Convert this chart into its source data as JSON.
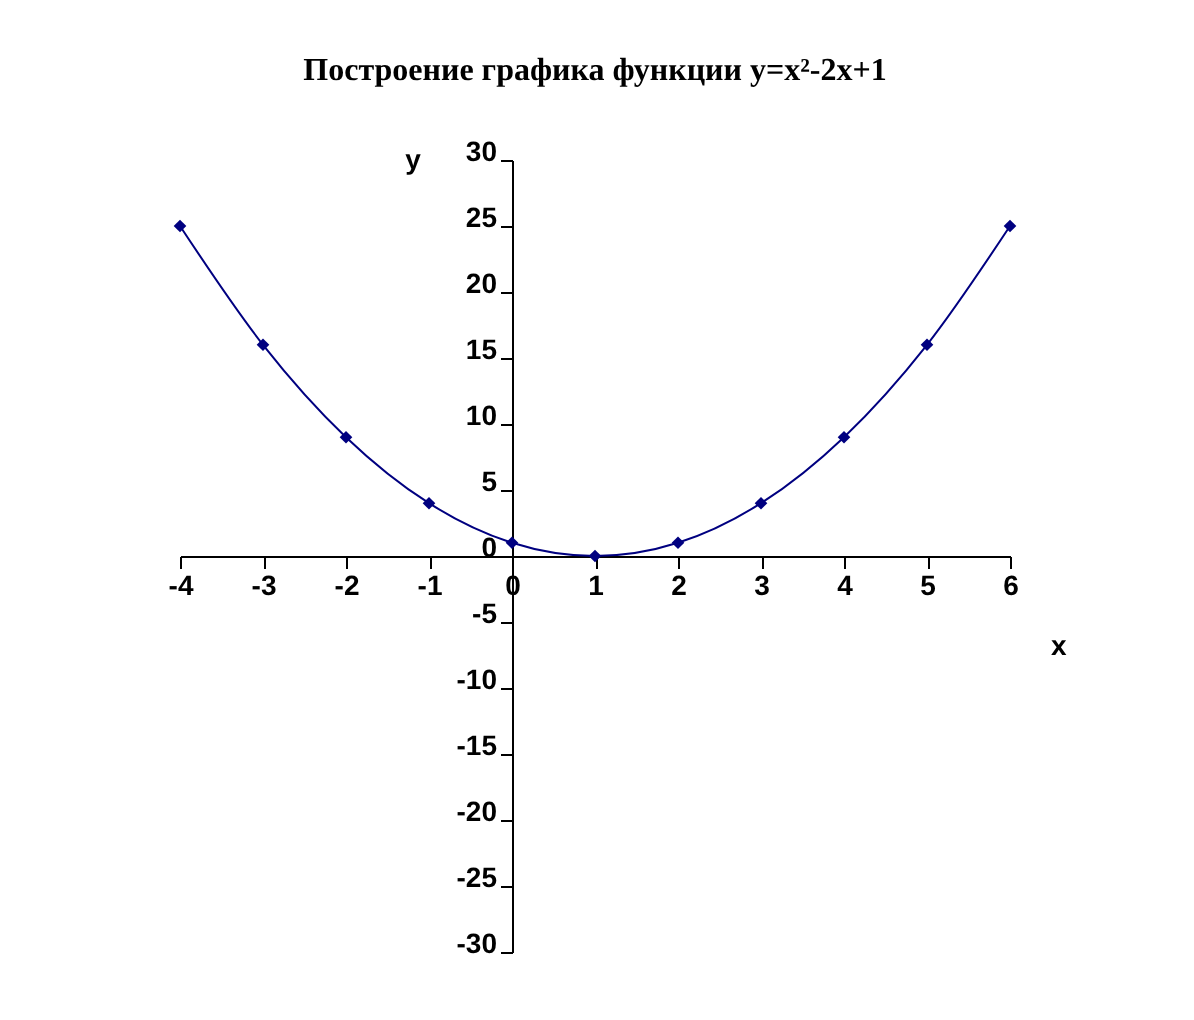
{
  "chart_data": {
    "type": "line",
    "title": "Построение графика функции y=x²-2x+1",
    "xlabel": "x",
    "ylabel": "y",
    "x": [
      -4,
      -3,
      -2,
      -1,
      0,
      1,
      2,
      3,
      4,
      5,
      6
    ],
    "series": [
      {
        "color": "#000080",
        "values": [
          25,
          16,
          9,
          4,
          1,
          0,
          1,
          4,
          9,
          16,
          25
        ]
      }
    ],
    "xlim": [
      -4,
      6
    ],
    "xticks": [
      -4,
      -3,
      -2,
      -1,
      0,
      1,
      2,
      3,
      4,
      5,
      6
    ],
    "ylim": [
      -30,
      30
    ],
    "yticks": [
      -30,
      -25,
      -20,
      -15,
      -10,
      -5,
      0,
      5,
      10,
      15,
      20,
      25,
      30
    ],
    "marker": "diamond"
  }
}
